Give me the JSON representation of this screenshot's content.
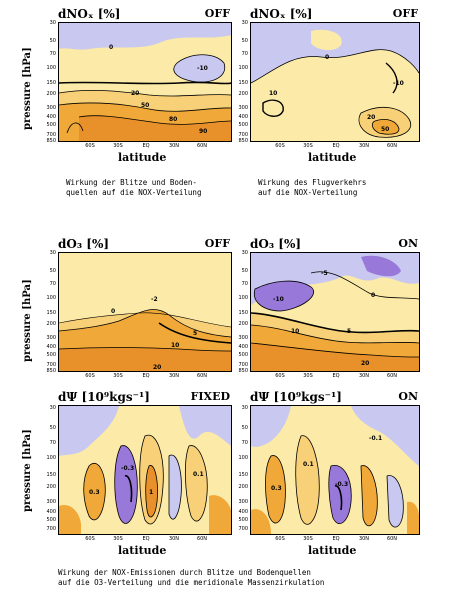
{
  "panels": [
    {
      "title": "dNOₓ [%]",
      "mode": "OFF",
      "ylabel": "pressure [hPa]",
      "xlabel": "latitude"
    },
    {
      "title": "dNOₓ [%]",
      "mode": "OFF",
      "ylabel": "",
      "xlabel": "latitude"
    },
    {
      "title": "dO₃ [%]",
      "mode": "OFF",
      "ylabel": "pressure [hPa]",
      "xlabel": ""
    },
    {
      "title": "dO₃ [%]",
      "mode": "ON",
      "ylabel": "",
      "xlabel": ""
    },
    {
      "title": "dΨ [10⁹kgs⁻¹]",
      "mode": "FIXED",
      "ylabel": "pressure [hPa]",
      "xlabel": "latitude"
    },
    {
      "title": "dΨ [10⁹kgs⁻¹]",
      "mode": "ON",
      "ylabel": "",
      "xlabel": "latitude"
    }
  ],
  "yticks_full": [
    "30",
    "50",
    "70",
    "100",
    "150",
    "200",
    "300",
    "400",
    "500",
    "700",
    "850"
  ],
  "yticks_bottom": [
    "30",
    "50",
    "70",
    "100",
    "150",
    "200",
    "300",
    "400",
    "500",
    "700"
  ],
  "xticks": [
    "60S",
    "30S",
    "EQ",
    "30N",
    "60N"
  ],
  "captions": {
    "top_left": "Wirkung der Blitze und Boden-\nquellen auf die NOX-Verteilung",
    "top_right": "Wirkung des Flugverkehrs\nauf die NOX-Verteilung",
    "bottom": "Wirkung der NOX-Emissionen durch Blitze und Bodenquellen\nauf die O3-Verteilung und die meridionale Massenzirkulation"
  },
  "contour_labels": {
    "p1": [
      "20",
      "50",
      "80",
      "90",
      "-10",
      "0"
    ],
    "p2": [
      "0",
      "20",
      "50",
      "-10",
      "10"
    ],
    "p3": [
      "-2",
      "0",
      "5",
      "10",
      "20"
    ],
    "p4": [
      "-10",
      "-5",
      "0",
      "5",
      "10",
      "20"
    ],
    "p5": [
      "0.3",
      "-0.3",
      "1",
      "0.1"
    ],
    "p6": [
      "0.3",
      "-0.3",
      "-0.1",
      "0.1"
    ]
  },
  "colors": {
    "lavender": "#c8c8f0",
    "violet": "#9878d8",
    "cream": "#fbeaa8",
    "sand": "#f7d078",
    "orange": "#f0a838",
    "deep_orange": "#e8902a"
  }
}
